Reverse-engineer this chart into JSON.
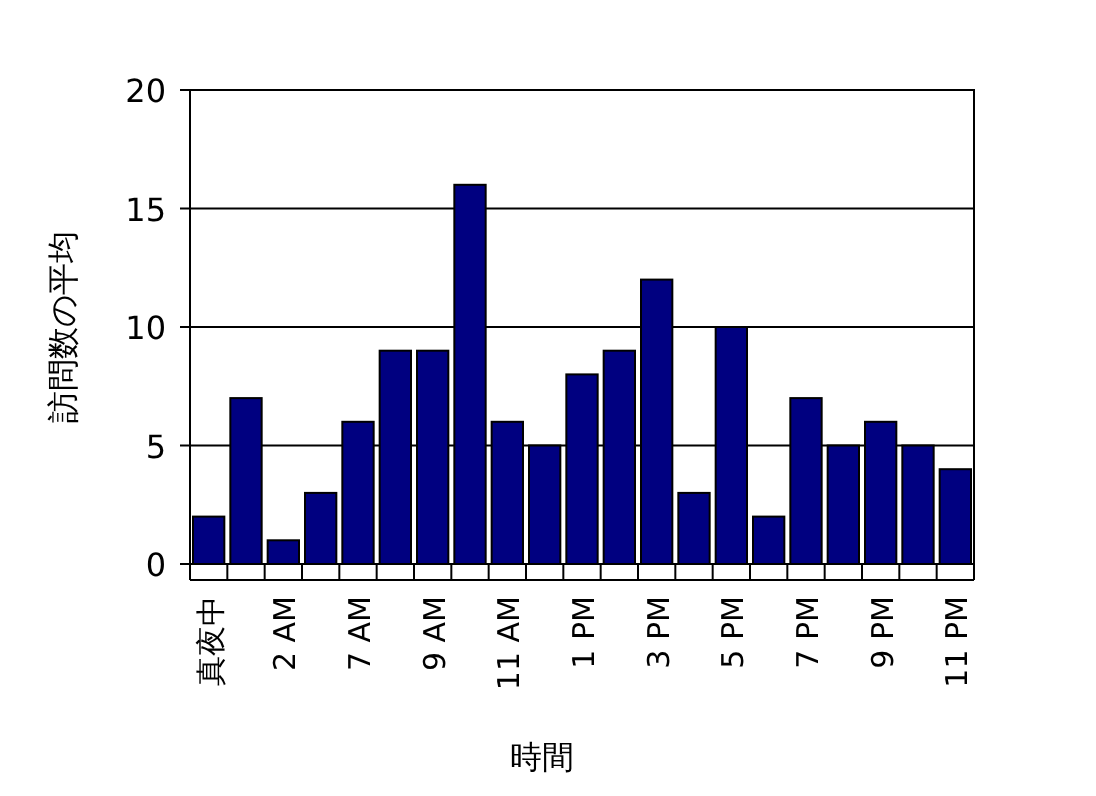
{
  "chart_data": {
    "type": "bar",
    "xlabel": "時間",
    "ylabel": "訪問数の平均",
    "categories": [
      "真夜中",
      null,
      "2 AM",
      null,
      "7 AM",
      null,
      "9 AM",
      null,
      "11 AM",
      null,
      "1 PM",
      null,
      "3 PM",
      null,
      "5 PM",
      null,
      "7 PM",
      null,
      "9 PM",
      null,
      "11 PM"
    ],
    "values": [
      2,
      7,
      1,
      3,
      6,
      9,
      9,
      16,
      6,
      5,
      8,
      9,
      12,
      3,
      10,
      2,
      7,
      5,
      6,
      5,
      4
    ],
    "color": "#000080",
    "ylim": [
      0,
      20
    ],
    "yticks": [
      0,
      5,
      10,
      15,
      20
    ],
    "grid": "y"
  }
}
